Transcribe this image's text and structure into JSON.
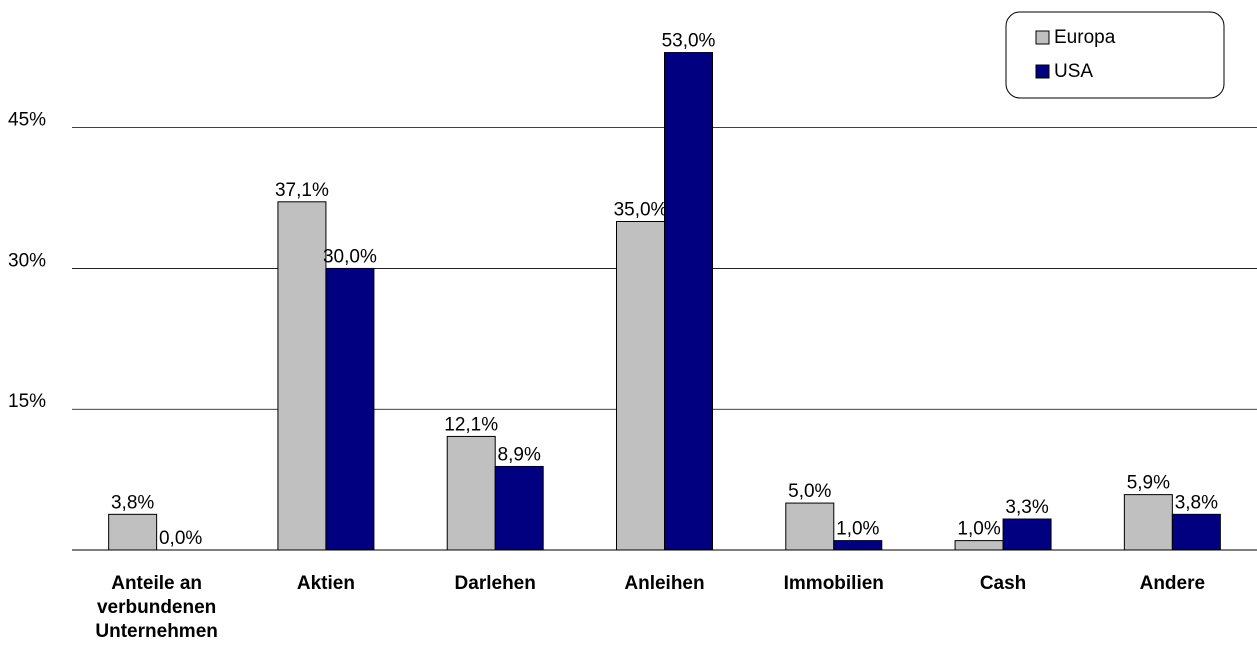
{
  "chart_data": {
    "type": "bar",
    "categories": [
      "Anteile an verbundenen Unternehmen",
      "Aktien",
      "Darlehen",
      "Anleihen",
      "Immobilien",
      "Cash",
      "Andere"
    ],
    "series": [
      {
        "name": "Europa",
        "color": "#c0c0c0",
        "values": [
          3.8,
          37.1,
          12.1,
          35.0,
          5.0,
          1.0,
          5.9
        ],
        "value_labels": [
          "3,8%",
          "37,1%",
          "12,1%",
          "35,0%",
          "5,0%",
          "1,0%",
          "5,9%"
        ]
      },
      {
        "name": "USA",
        "color": "#000080",
        "values": [
          0.0,
          30.0,
          8.9,
          53.0,
          1.0,
          3.3,
          3.8
        ],
        "value_labels": [
          "0,0%",
          "30,0%",
          "8,9%",
          "53,0%",
          "1,0%",
          "3,3%",
          "3,8%"
        ]
      }
    ],
    "ylim": [
      0,
      58.6
    ],
    "yticks": [
      {
        "value": 15,
        "label": "15%"
      },
      {
        "value": 30,
        "label": "30%"
      },
      {
        "value": 45,
        "label": "45%"
      }
    ],
    "grid": true,
    "legend": "upper right"
  }
}
